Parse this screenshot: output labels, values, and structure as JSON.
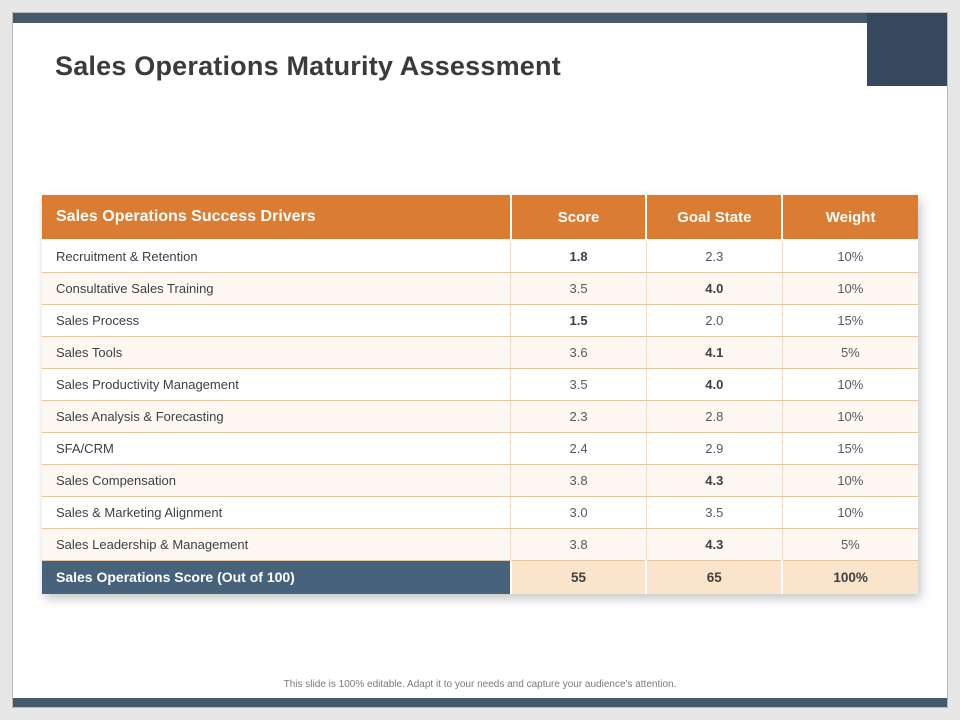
{
  "slide": {
    "title": "Sales Operations Maturity Assessment",
    "footnote": "This slide is 100% editable. Adapt it to your needs and capture your audience's attention."
  },
  "table": {
    "headers": [
      "Sales Operations Success Drivers",
      "Score",
      "Goal State",
      "Weight"
    ],
    "rows": [
      {
        "driver": "Recruitment & Retention",
        "score": "1.8",
        "score_bold": true,
        "goal": "2.3",
        "goal_bold": false,
        "weight": "10%"
      },
      {
        "driver": "Consultative Sales Training",
        "score": "3.5",
        "score_bold": false,
        "goal": "4.0",
        "goal_bold": true,
        "weight": "10%"
      },
      {
        "driver": "Sales Process",
        "score": "1.5",
        "score_bold": true,
        "goal": "2.0",
        "goal_bold": false,
        "weight": "15%"
      },
      {
        "driver": "Sales Tools",
        "score": "3.6",
        "score_bold": false,
        "goal": "4.1",
        "goal_bold": true,
        "weight": "5%"
      },
      {
        "driver": "Sales Productivity Management",
        "score": "3.5",
        "score_bold": false,
        "goal": "4.0",
        "goal_bold": true,
        "weight": "10%"
      },
      {
        "driver": "Sales Analysis & Forecasting",
        "score": "2.3",
        "score_bold": false,
        "goal": "2.8",
        "goal_bold": false,
        "weight": "10%"
      },
      {
        "driver": "SFA/CRM",
        "score": "2.4",
        "score_bold": false,
        "goal": "2.9",
        "goal_bold": false,
        "weight": "15%"
      },
      {
        "driver": "Sales Compensation",
        "score": "3.8",
        "score_bold": false,
        "goal": "4.3",
        "goal_bold": true,
        "weight": "10%"
      },
      {
        "driver": "Sales & Marketing Alignment",
        "score": "3.0",
        "score_bold": false,
        "goal": "3.5",
        "goal_bold": false,
        "weight": "10%"
      },
      {
        "driver": "Sales Leadership & Management",
        "score": "3.8",
        "score_bold": false,
        "goal": "4.3",
        "goal_bold": true,
        "weight": "5%"
      }
    ],
    "footer": {
      "label": "Sales Operations Score (Out of 100)",
      "score": "55",
      "goal": "65",
      "weight": "100%"
    }
  },
  "colors": {
    "header_bg": "#db7c33",
    "footer_label_bg": "#47637c",
    "footer_value_bg": "#fbe4cc",
    "row_border": "#e5c6a3",
    "accent_bar": "#44596c",
    "corner_block": "#35485e"
  }
}
